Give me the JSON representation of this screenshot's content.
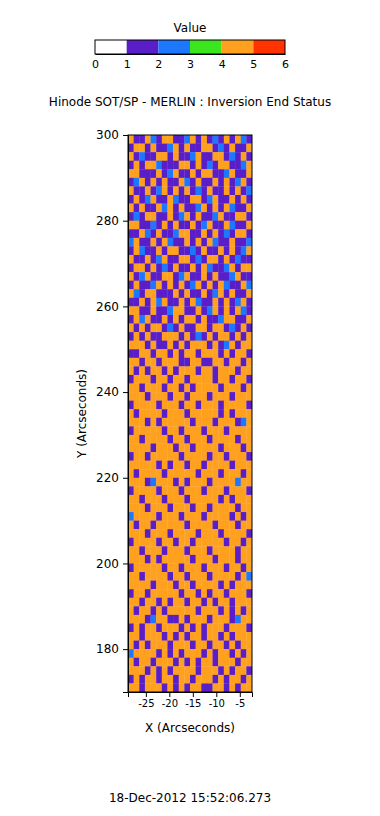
{
  "chart_data": {
    "type": "heatmap",
    "title": "Hinode SOT/SP - MERLIN : Inversion End Status",
    "x_label": "X (Arcseconds)",
    "y_label": "Y (Arcseconds)",
    "annotation": "18-Dec-2012 15:52:06.273",
    "xlim": [
      -28.8,
      -2.4
    ],
    "xticks": [
      -25,
      -20,
      -15,
      -10,
      -5
    ],
    "ylim": [
      170,
      300
    ],
    "yticks": [
      180,
      200,
      220,
      240,
      260,
      280,
      300
    ],
    "x": [
      -28.2,
      -27,
      -25.8,
      -24.6,
      -23.4,
      -22.2,
      -21,
      -19.8,
      -18.6,
      -17.4,
      -16.2,
      -15,
      -13.8,
      -12.6,
      -11.4,
      -10.2,
      -9,
      -7.8,
      -6.6,
      -5.4,
      -4.2,
      -3
    ],
    "y": [
      299,
      297,
      295,
      293,
      291,
      289,
      287,
      285,
      283,
      281,
      279,
      277,
      275,
      273,
      271,
      269,
      267,
      265,
      263,
      261,
      259,
      257,
      255,
      253,
      251,
      249,
      247,
      245,
      243,
      241,
      239,
      237,
      235,
      233,
      231,
      229,
      227,
      225,
      223,
      221,
      219,
      217,
      215,
      213,
      211,
      209,
      207,
      205,
      203,
      201,
      199,
      197,
      195,
      193,
      191,
      189,
      187,
      185,
      183,
      181,
      179,
      177,
      175,
      173,
      171
    ],
    "z": [
      [
        4,
        1,
        1,
        4,
        2,
        1,
        4,
        4,
        1,
        1,
        2,
        4,
        1,
        4,
        1,
        2,
        1,
        4,
        1,
        4,
        2,
        1
      ],
      [
        1,
        4,
        4,
        1,
        4,
        1,
        1,
        2,
        4,
        1,
        4,
        1,
        1,
        4,
        4,
        1,
        2,
        1,
        4,
        1,
        1,
        4
      ],
      [
        4,
        1,
        2,
        1,
        1,
        4,
        4,
        1,
        4,
        1,
        1,
        2,
        4,
        1,
        1,
        4,
        4,
        1,
        2,
        1,
        4,
        1
      ],
      [
        1,
        4,
        1,
        4,
        4,
        2,
        1,
        1,
        1,
        4,
        4,
        1,
        4,
        1,
        2,
        1,
        4,
        4,
        1,
        1,
        2,
        4
      ],
      [
        4,
        4,
        1,
        1,
        1,
        4,
        1,
        2,
        4,
        1,
        1,
        4,
        1,
        4,
        4,
        1,
        1,
        2,
        4,
        1,
        1,
        4
      ],
      [
        1,
        2,
        4,
        1,
        4,
        1,
        4,
        1,
        1,
        4,
        2,
        1,
        4,
        1,
        1,
        4,
        1,
        4,
        1,
        2,
        4,
        1
      ],
      [
        4,
        1,
        1,
        4,
        1,
        2,
        4,
        1,
        4,
        1,
        4,
        1,
        2,
        1,
        4,
        1,
        1,
        4,
        1,
        4,
        1,
        2
      ],
      [
        1,
        4,
        1,
        2,
        4,
        1,
        1,
        4,
        2,
        1,
        1,
        4,
        4,
        1,
        2,
        4,
        1,
        1,
        4,
        1,
        4,
        1
      ],
      [
        4,
        1,
        4,
        1,
        1,
        4,
        2,
        4,
        1,
        4,
        1,
        1,
        2,
        4,
        1,
        4,
        1,
        4,
        2,
        1,
        1,
        4
      ],
      [
        1,
        2,
        1,
        4,
        4,
        1,
        1,
        4,
        1,
        2,
        4,
        1,
        4,
        1,
        1,
        2,
        4,
        1,
        1,
        4,
        4,
        1
      ],
      [
        4,
        4,
        1,
        1,
        2,
        1,
        4,
        1,
        4,
        1,
        1,
        4,
        1,
        2,
        4,
        1,
        1,
        4,
        2,
        1,
        1,
        4
      ],
      [
        1,
        1,
        4,
        2,
        1,
        4,
        1,
        1,
        2,
        4,
        4,
        1,
        1,
        4,
        1,
        4,
        1,
        2,
        1,
        4,
        4,
        1
      ],
      [
        2,
        4,
        1,
        1,
        4,
        1,
        4,
        2,
        1,
        1,
        4,
        1,
        4,
        1,
        4,
        2,
        1,
        1,
        4,
        1,
        1,
        2
      ],
      [
        1,
        4,
        2,
        1,
        1,
        4,
        1,
        4,
        4,
        1,
        1,
        2,
        1,
        4,
        1,
        1,
        4,
        1,
        4,
        1,
        2,
        4
      ],
      [
        4,
        1,
        1,
        4,
        1,
        2,
        4,
        1,
        1,
        4,
        4,
        1,
        2,
        1,
        4,
        4,
        1,
        4,
        1,
        2,
        1,
        1
      ],
      [
        1,
        4,
        4,
        1,
        4,
        1,
        2,
        1,
        4,
        1,
        1,
        4,
        1,
        4,
        2,
        1,
        1,
        2,
        4,
        1,
        4,
        4
      ],
      [
        4,
        1,
        2,
        4,
        1,
        1,
        4,
        4,
        1,
        2,
        4,
        1,
        1,
        4,
        1,
        4,
        1,
        1,
        2,
        4,
        1,
        1
      ],
      [
        1,
        4,
        1,
        1,
        2,
        4,
        1,
        4,
        1,
        4,
        1,
        2,
        4,
        1,
        4,
        1,
        4,
        2,
        1,
        1,
        4,
        2
      ],
      [
        4,
        2,
        1,
        4,
        4,
        1,
        1,
        1,
        4,
        1,
        4,
        1,
        1,
        4,
        1,
        2,
        4,
        1,
        4,
        1,
        1,
        4
      ],
      [
        1,
        1,
        4,
        1,
        4,
        2,
        4,
        1,
        1,
        4,
        1,
        4,
        2,
        1,
        1,
        4,
        1,
        4,
        1,
        2,
        4,
        1
      ],
      [
        4,
        4,
        1,
        1,
        4,
        1,
        1,
        2,
        4,
        4,
        1,
        1,
        4,
        1,
        2,
        4,
        1,
        4,
        1,
        4,
        2,
        1
      ],
      [
        1,
        4,
        2,
        4,
        1,
        1,
        4,
        1,
        4,
        1,
        4,
        4,
        1,
        4,
        1,
        1,
        2,
        4,
        4,
        1,
        1,
        4
      ],
      [
        4,
        1,
        4,
        1,
        4,
        4,
        1,
        2,
        1,
        4,
        1,
        1,
        4,
        4,
        1,
        4,
        4,
        1,
        2,
        1,
        4,
        1
      ],
      [
        1,
        4,
        1,
        4,
        1,
        1,
        4,
        4,
        4,
        1,
        4,
        1,
        2,
        1,
        4,
        1,
        4,
        4,
        1,
        4,
        1,
        4
      ],
      [
        4,
        4,
        4,
        1,
        4,
        1,
        1,
        4,
        1,
        4,
        1,
        4,
        4,
        4,
        1,
        4,
        1,
        2,
        4,
        1,
        4,
        4
      ],
      [
        1,
        1,
        4,
        4,
        1,
        4,
        4,
        1,
        4,
        1,
        4,
        4,
        1,
        4,
        4,
        4,
        1,
        4,
        1,
        4,
        4,
        1
      ],
      [
        4,
        4,
        1,
        4,
        4,
        1,
        4,
        4,
        4,
        1,
        1,
        4,
        4,
        1,
        1,
        4,
        4,
        1,
        4,
        4,
        1,
        4
      ],
      [
        4,
        1,
        4,
        1,
        4,
        4,
        1,
        4,
        1,
        4,
        4,
        4,
        1,
        4,
        4,
        1,
        4,
        4,
        4,
        1,
        4,
        4
      ],
      [
        1,
        4,
        4,
        4,
        1,
        4,
        4,
        1,
        4,
        4,
        1,
        4,
        4,
        4,
        4,
        1,
        4,
        4,
        1,
        4,
        4,
        1
      ],
      [
        4,
        4,
        1,
        4,
        4,
        4,
        1,
        4,
        4,
        1,
        4,
        1,
        4,
        4,
        4,
        4,
        1,
        4,
        4,
        4,
        1,
        4
      ],
      [
        4,
        4,
        4,
        1,
        4,
        4,
        4,
        1,
        4,
        4,
        1,
        4,
        4,
        4,
        1,
        4,
        4,
        4,
        1,
        4,
        4,
        4
      ],
      [
        1,
        4,
        4,
        4,
        4,
        1,
        4,
        4,
        4,
        1,
        4,
        4,
        1,
        4,
        4,
        4,
        1,
        4,
        4,
        4,
        4,
        1
      ],
      [
        4,
        1,
        4,
        4,
        4,
        4,
        1,
        4,
        4,
        4,
        1,
        4,
        4,
        4,
        4,
        4,
        1,
        4,
        1,
        4,
        4,
        4
      ],
      [
        4,
        4,
        4,
        1,
        4,
        1,
        4,
        4,
        4,
        4,
        4,
        1,
        4,
        4,
        4,
        1,
        4,
        4,
        4,
        1,
        2,
        4
      ],
      [
        1,
        4,
        4,
        4,
        4,
        4,
        1,
        4,
        4,
        1,
        4,
        4,
        4,
        1,
        4,
        4,
        4,
        1,
        4,
        4,
        4,
        4
      ],
      [
        4,
        4,
        1,
        4,
        4,
        4,
        4,
        1,
        4,
        4,
        1,
        4,
        4,
        4,
        1,
        4,
        4,
        4,
        4,
        1,
        4,
        4
      ],
      [
        4,
        4,
        4,
        4,
        1,
        4,
        4,
        4,
        1,
        4,
        4,
        1,
        4,
        4,
        4,
        4,
        1,
        4,
        4,
        4,
        1,
        4
      ],
      [
        1,
        4,
        4,
        1,
        4,
        4,
        4,
        4,
        4,
        1,
        4,
        4,
        4,
        4,
        1,
        4,
        4,
        1,
        4,
        4,
        4,
        1
      ],
      [
        4,
        4,
        4,
        4,
        4,
        1,
        4,
        1,
        4,
        4,
        1,
        4,
        4,
        1,
        4,
        4,
        4,
        4,
        1,
        4,
        4,
        4
      ],
      [
        4,
        1,
        4,
        4,
        4,
        4,
        1,
        4,
        4,
        4,
        4,
        4,
        1,
        4,
        4,
        4,
        1,
        4,
        4,
        4,
        1,
        4
      ],
      [
        4,
        4,
        4,
        1,
        2,
        4,
        4,
        4,
        1,
        4,
        1,
        4,
        4,
        4,
        1,
        4,
        4,
        4,
        4,
        2,
        4,
        4
      ],
      [
        1,
        4,
        4,
        4,
        4,
        1,
        4,
        4,
        4,
        1,
        4,
        4,
        4,
        1,
        4,
        4,
        4,
        1,
        4,
        4,
        4,
        1
      ],
      [
        4,
        4,
        1,
        4,
        4,
        4,
        1,
        4,
        4,
        4,
        1,
        4,
        4,
        4,
        4,
        4,
        1,
        4,
        1,
        4,
        4,
        4
      ],
      [
        4,
        4,
        4,
        1,
        4,
        4,
        4,
        1,
        4,
        4,
        4,
        1,
        4,
        4,
        1,
        4,
        4,
        4,
        4,
        1,
        4,
        4
      ],
      [
        2,
        4,
        4,
        4,
        4,
        1,
        4,
        4,
        4,
        1,
        4,
        4,
        4,
        1,
        4,
        4,
        4,
        4,
        1,
        4,
        1,
        4
      ],
      [
        4,
        1,
        4,
        4,
        1,
        4,
        4,
        4,
        4,
        4,
        1,
        4,
        4,
        4,
        4,
        1,
        4,
        4,
        4,
        1,
        4,
        4
      ],
      [
        4,
        4,
        4,
        1,
        4,
        4,
        4,
        1,
        4,
        4,
        4,
        4,
        1,
        4,
        4,
        4,
        1,
        4,
        4,
        4,
        4,
        1
      ],
      [
        1,
        4,
        4,
        4,
        4,
        1,
        4,
        4,
        1,
        4,
        4,
        1,
        4,
        4,
        4,
        4,
        4,
        1,
        4,
        4,
        1,
        4
      ],
      [
        4,
        4,
        1,
        4,
        4,
        4,
        1,
        4,
        4,
        4,
        1,
        4,
        4,
        4,
        1,
        4,
        4,
        4,
        4,
        1,
        4,
        4
      ],
      [
        4,
        4,
        4,
        1,
        4,
        1,
        4,
        4,
        4,
        4,
        4,
        1,
        4,
        4,
        4,
        1,
        4,
        4,
        4,
        1,
        4,
        4
      ],
      [
        1,
        4,
        4,
        4,
        4,
        4,
        1,
        4,
        4,
        1,
        4,
        4,
        4,
        1,
        4,
        4,
        4,
        1,
        4,
        4,
        1,
        4
      ],
      [
        4,
        4,
        1,
        4,
        4,
        4,
        4,
        1,
        4,
        4,
        1,
        4,
        4,
        4,
        1,
        4,
        4,
        4,
        4,
        1,
        4,
        2
      ],
      [
        4,
        4,
        4,
        4,
        1,
        4,
        4,
        4,
        1,
        4,
        4,
        1,
        4,
        4,
        4,
        4,
        1,
        4,
        1,
        4,
        4,
        4
      ],
      [
        1,
        4,
        4,
        1,
        4,
        4,
        4,
        4,
        4,
        1,
        4,
        4,
        1,
        4,
        1,
        4,
        4,
        1,
        4,
        4,
        4,
        1
      ],
      [
        4,
        4,
        1,
        4,
        4,
        1,
        4,
        1,
        4,
        4,
        1,
        4,
        4,
        1,
        4,
        1,
        4,
        4,
        1,
        4,
        4,
        4
      ],
      [
        4,
        1,
        4,
        4,
        1,
        4,
        1,
        4,
        4,
        4,
        4,
        4,
        1,
        4,
        4,
        4,
        1,
        4,
        1,
        4,
        1,
        4
      ],
      [
        4,
        4,
        4,
        1,
        2,
        4,
        4,
        1,
        1,
        4,
        1,
        4,
        4,
        4,
        1,
        4,
        4,
        4,
        1,
        2,
        4,
        4
      ],
      [
        1,
        4,
        1,
        4,
        4,
        1,
        4,
        4,
        4,
        1,
        4,
        1,
        4,
        1,
        4,
        4,
        4,
        1,
        4,
        4,
        4,
        1
      ],
      [
        4,
        4,
        1,
        4,
        4,
        4,
        1,
        4,
        1,
        4,
        1,
        4,
        4,
        1,
        4,
        4,
        1,
        4,
        1,
        4,
        4,
        4
      ],
      [
        4,
        1,
        4,
        1,
        4,
        4,
        4,
        1,
        4,
        4,
        4,
        1,
        4,
        4,
        1,
        4,
        4,
        1,
        4,
        1,
        4,
        4
      ],
      [
        2,
        4,
        4,
        4,
        4,
        1,
        4,
        1,
        4,
        1,
        4,
        4,
        4,
        1,
        4,
        1,
        4,
        4,
        1,
        4,
        1,
        4
      ],
      [
        4,
        1,
        4,
        4,
        1,
        4,
        4,
        4,
        1,
        4,
        1,
        4,
        1,
        4,
        4,
        1,
        4,
        4,
        4,
        1,
        4,
        4
      ],
      [
        4,
        4,
        4,
        1,
        4,
        1,
        4,
        1,
        4,
        4,
        4,
        4,
        1,
        4,
        4,
        4,
        1,
        4,
        1,
        4,
        4,
        1
      ],
      [
        1,
        4,
        1,
        4,
        4,
        1,
        4,
        4,
        1,
        4,
        4,
        1,
        4,
        4,
        4,
        1,
        4,
        1,
        4,
        4,
        1,
        4
      ],
      [
        4,
        4,
        1,
        4,
        4,
        4,
        1,
        4,
        1,
        4,
        1,
        4,
        4,
        1,
        1,
        4,
        4,
        1,
        4,
        1,
        4,
        4
      ]
    ],
    "colorbar": {
      "title": "Value",
      "range": [
        0,
        6
      ],
      "ticks": [
        0,
        1,
        2,
        3,
        4,
        5,
        6
      ],
      "colors": [
        "#ffffff",
        "#5a1ec8",
        "#1e78ff",
        "#3ce61e",
        "#ffa01e",
        "#ff3200"
      ]
    }
  }
}
